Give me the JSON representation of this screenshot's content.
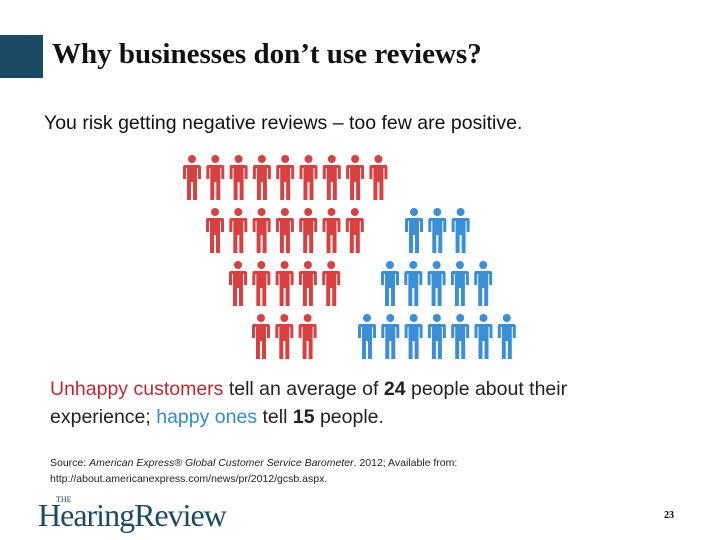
{
  "header": {
    "title": "Why businesses don’t use reviews?"
  },
  "subtitle": "You risk getting negative reviews – too few are positive.",
  "figures": {
    "colors": {
      "unhappy": "#d9403f",
      "happy": "#3b8fd6"
    },
    "rows": [
      {
        "unhappy": 9,
        "happy": 0
      },
      {
        "unhappy": 7,
        "happy": 3
      },
      {
        "unhappy": 5,
        "happy": 5
      },
      {
        "unhappy": 3,
        "happy": 7
      }
    ]
  },
  "stat": {
    "unhappy_label": "Unhappy customers",
    "part1": " tell an average of ",
    "unhappy_count": "24",
    "part2": " people about their experience; ",
    "happy_label": "happy ones",
    "part3": " tell ",
    "happy_count": "15",
    "part4": " people."
  },
  "source": {
    "prefix": "Source: ",
    "work": "American Express® Global Customer Service Barometer",
    "suffix": ". 2012; Available from:",
    "url": "http://about.americanexpress.com/news/pr/2012/gcsb.aspx."
  },
  "footer": {
    "logo_the": "THE",
    "logo": "HearingReview",
    "page_number": "23"
  }
}
